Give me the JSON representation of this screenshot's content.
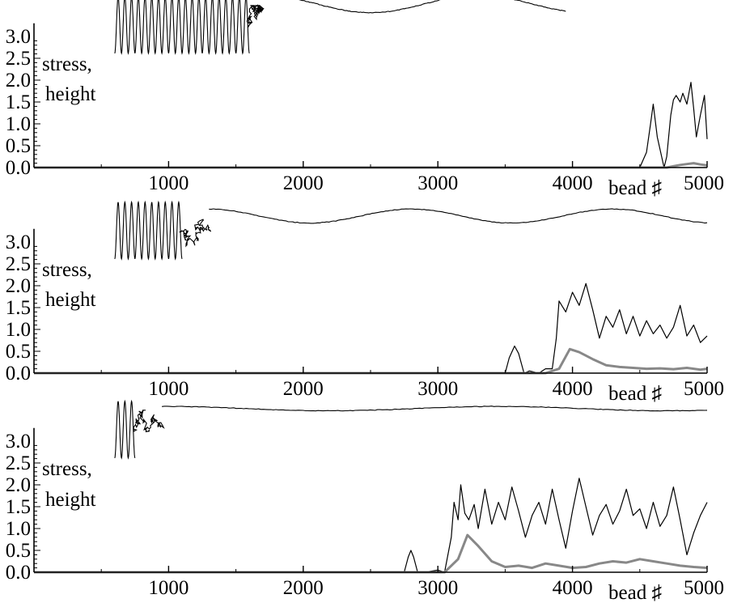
{
  "chart_data": [
    {
      "type": "line",
      "panel": 1,
      "ylabel_line1": "stress,",
      "ylabel_line2": "height",
      "xlabel": "bead ♯",
      "xlim": [
        0,
        5000
      ],
      "ylim": [
        0,
        3.5
      ],
      "x_ticks": [
        1000,
        2000,
        3000,
        4000,
        5000
      ],
      "y_ticks": [
        "0.0",
        "0.5",
        "1.0",
        "1.5",
        "2.0",
        "2.5",
        "3.0"
      ],
      "chain_shape": {
        "helix_start": 600,
        "helix_end": 1600,
        "helix_turns": 20,
        "tangle_start": 1600,
        "tangle_end": 1700,
        "smooth_end": 3950,
        "baseline": 3.3,
        "amplitude": 0.2,
        "period": 1600
      },
      "series": [
        {
          "color": "#000000",
          "x": [
            0,
            4500,
            4550,
            4580,
            4600,
            4630,
            4680,
            4700,
            4730,
            4750,
            4770,
            4800,
            4820,
            4850,
            4880,
            4900,
            4920,
            4950,
            4980,
            5000,
            5000
          ],
          "y": [
            0,
            0,
            0.35,
            1.0,
            1.45,
            0.7,
            0.0,
            0.25,
            1.2,
            1.55,
            1.65,
            1.5,
            1.7,
            1.45,
            1.95,
            1.35,
            0.7,
            1.2,
            1.65,
            0.65,
            0.65
          ]
        },
        {
          "color": "#888888",
          "x": [
            0,
            4700,
            4750,
            4800,
            4850,
            4900,
            4950,
            5000
          ],
          "y": [
            0,
            0,
            0.03,
            0.06,
            0.08,
            0.1,
            0.07,
            0.05
          ]
        }
      ]
    },
    {
      "type": "line",
      "panel": 2,
      "ylabel_line1": "stress,",
      "ylabel_line2": "height",
      "xlabel": "bead ♯",
      "xlim": [
        0,
        5000
      ],
      "ylim": [
        0,
        3.5
      ],
      "x_ticks": [
        1000,
        2000,
        3000,
        4000,
        5000
      ],
      "y_ticks": [
        "0.0",
        "0.5",
        "1.0",
        "1.5",
        "2.0",
        "2.5",
        "3.0"
      ],
      "chain_shape": {
        "helix_start": 600,
        "helix_end": 1100,
        "helix_turns": 10,
        "tangle_start": 1100,
        "tangle_end": 1300,
        "smooth_end": 5000,
        "baseline": 3.15,
        "amplitude": 0.16,
        "period": 1500
      },
      "series": [
        {
          "color": "#000000",
          "x": [
            0,
            3500,
            3530,
            3570,
            3600,
            3640,
            3680,
            3750,
            3800,
            3850,
            3880,
            3900,
            3950,
            4000,
            4050,
            4100,
            4150,
            4200,
            4250,
            4300,
            4350,
            4400,
            4450,
            4500,
            4550,
            4600,
            4650,
            4700,
            4750,
            4800,
            4850,
            4900,
            4950,
            5000
          ],
          "y": [
            0,
            0,
            0.35,
            0.62,
            0.45,
            0.0,
            0.05,
            0.0,
            0.1,
            0.1,
            0.8,
            1.65,
            1.4,
            1.85,
            1.55,
            2.05,
            1.45,
            0.8,
            1.3,
            1.05,
            1.45,
            0.9,
            1.3,
            0.85,
            1.2,
            0.9,
            1.1,
            0.8,
            1.05,
            1.55,
            0.85,
            1.1,
            0.7,
            0.85
          ]
        },
        {
          "color": "#888888",
          "x": [
            0,
            3800,
            3900,
            3980,
            4050,
            4150,
            4250,
            4350,
            4450,
            4550,
            4650,
            4750,
            4850,
            4950,
            5000
          ],
          "y": [
            0,
            0,
            0.1,
            0.55,
            0.48,
            0.32,
            0.18,
            0.14,
            0.12,
            0.1,
            0.11,
            0.09,
            0.12,
            0.08,
            0.1
          ]
        }
      ]
    },
    {
      "type": "line",
      "panel": 3,
      "ylabel_line1": "stress,",
      "ylabel_line2": "height",
      "xlabel": "bead ♯",
      "xlim": [
        0,
        5000
      ],
      "ylim": [
        0,
        3.5
      ],
      "x_ticks": [
        1000,
        2000,
        3000,
        4000,
        5000
      ],
      "y_ticks": [
        "0.0",
        "0.5",
        "1.0",
        "1.5",
        "2.0",
        "2.5",
        "3.0"
      ],
      "chain_shape": {
        "helix_start": 600,
        "helix_end": 750,
        "helix_turns": 3,
        "tangle_start": 750,
        "tangle_end": 950,
        "smooth_end": 5000,
        "baseline": 3.3,
        "amplitude": 0.05,
        "period": 2500
      },
      "series": [
        {
          "color": "#000000",
          "x": [
            0,
            2750,
            2780,
            2800,
            2820,
            2850,
            2900,
            3000,
            3050,
            3100,
            3120,
            3150,
            3170,
            3200,
            3230,
            3270,
            3300,
            3350,
            3400,
            3450,
            3500,
            3550,
            3600,
            3650,
            3700,
            3750,
            3800,
            3850,
            3900,
            3950,
            4000,
            4050,
            4100,
            4150,
            4200,
            4250,
            4300,
            4350,
            4400,
            4450,
            4500,
            4550,
            4600,
            4650,
            4700,
            4750,
            4800,
            4850,
            4900,
            4950,
            5000
          ],
          "y": [
            0,
            0,
            0.35,
            0.5,
            0.35,
            0.0,
            0.0,
            0.05,
            0.0,
            0.8,
            1.6,
            1.2,
            2.0,
            1.35,
            1.2,
            1.55,
            1.0,
            1.9,
            1.1,
            1.6,
            1.2,
            1.95,
            1.4,
            0.8,
            1.3,
            1.6,
            1.1,
            1.9,
            1.2,
            0.55,
            1.4,
            2.15,
            1.5,
            0.85,
            1.3,
            1.55,
            1.1,
            1.4,
            1.9,
            1.3,
            1.45,
            1.0,
            1.6,
            1.05,
            1.3,
            1.95,
            1.2,
            0.4,
            0.9,
            1.3,
            1.6
          ]
        },
        {
          "color": "#888888",
          "x": [
            0,
            3050,
            3150,
            3220,
            3300,
            3400,
            3500,
            3600,
            3700,
            3800,
            3900,
            4000,
            4100,
            4200,
            4300,
            4400,
            4500,
            4600,
            4700,
            4800,
            4900,
            5000
          ],
          "y": [
            0,
            0,
            0.3,
            0.85,
            0.6,
            0.25,
            0.12,
            0.15,
            0.1,
            0.2,
            0.15,
            0.1,
            0.12,
            0.2,
            0.25,
            0.22,
            0.3,
            0.25,
            0.2,
            0.15,
            0.12,
            0.1
          ]
        }
      ]
    }
  ]
}
